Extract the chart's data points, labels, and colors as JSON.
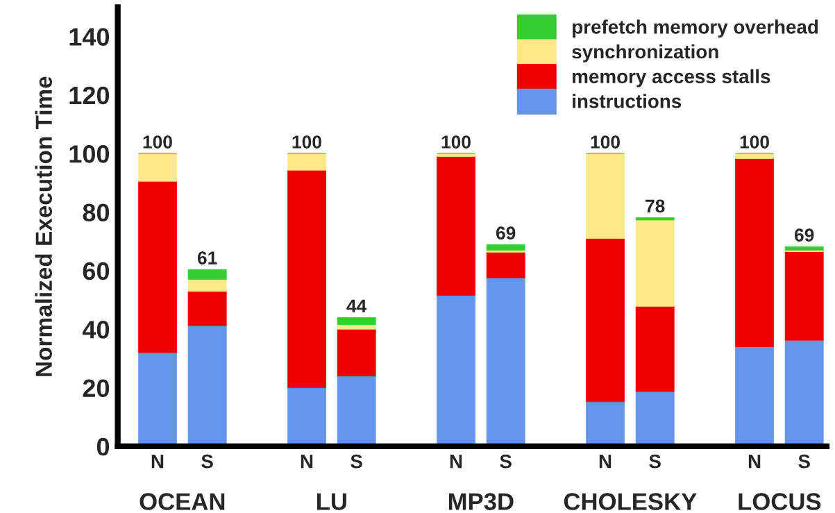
{
  "chart_data": {
    "type": "bar",
    "stacked": true,
    "ylabel": "Normalized Execution Time",
    "categories": [
      "N",
      "S",
      "N",
      "S",
      "N",
      "S",
      "N",
      "S",
      "N",
      "S"
    ],
    "series": [
      {
        "name": "instructions",
        "color": "#6495ea",
        "values": [
          32,
          41.2,
          20,
          24,
          51.5,
          57.5,
          15.2,
          18.7,
          34,
          36.2
        ]
      },
      {
        "name": "memory access stalls",
        "color": "#ee0000",
        "values": [
          58.5,
          11.7,
          74.3,
          16,
          47.5,
          8.8,
          55.8,
          29.1,
          64.3,
          30.3
        ]
      },
      {
        "name": "synchronization",
        "color": "#fde98a",
        "values": [
          9.5,
          4.1,
          5.7,
          1.6,
          1,
          0.6,
          29,
          29.5,
          1.7,
          0.5
        ]
      },
      {
        "name": "prefetch memory overhead",
        "color": "#33cc33",
        "values": [
          0,
          3.4,
          0,
          2.4,
          0,
          2,
          0,
          0.8,
          0,
          1.2
        ]
      }
    ],
    "totals": [
      "100",
      "61",
      "100",
      "44",
      "100",
      "69",
      "100",
      "78",
      "100",
      "69"
    ],
    "annotations": [
      "OCEAN",
      "LU",
      "MP3D",
      "CHOLESKY",
      "LOCUS"
    ],
    "ylim": [
      0,
      150
    ],
    "yticks": [
      0,
      20,
      40,
      60,
      80,
      100,
      120,
      140
    ],
    "grid": false,
    "legend": "top right"
  }
}
